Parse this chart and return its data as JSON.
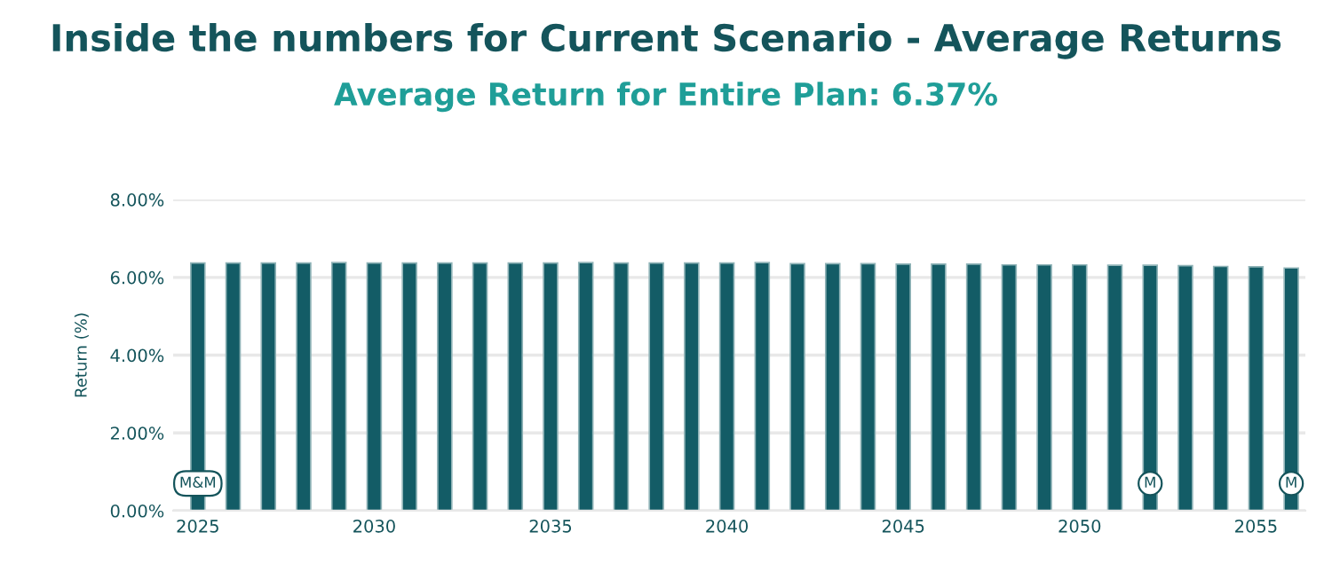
{
  "chart_data": {
    "type": "bar",
    "title": "Inside the numbers for Current Scenario - Average Returns",
    "subtitle": "Average Return for Entire Plan: 6.37%",
    "ylabel": "Return (%)",
    "x": [
      2025,
      2026,
      2027,
      2028,
      2029,
      2030,
      2031,
      2032,
      2033,
      2034,
      2035,
      2036,
      2037,
      2038,
      2039,
      2040,
      2041,
      2042,
      2043,
      2044,
      2045,
      2046,
      2047,
      2048,
      2049,
      2050,
      2051,
      2052,
      2053,
      2054,
      2055,
      2056
    ],
    "series": [
      {
        "color": "#135c66",
        "values": [
          6.37,
          6.37,
          6.37,
          6.37,
          6.38,
          6.37,
          6.37,
          6.37,
          6.37,
          6.37,
          6.37,
          6.38,
          6.37,
          6.37,
          6.37,
          6.37,
          6.38,
          6.35,
          6.35,
          6.35,
          6.34,
          6.34,
          6.34,
          6.32,
          6.32,
          6.32,
          6.31,
          6.31,
          6.3,
          6.28,
          6.27,
          6.24
        ]
      }
    ],
    "xlim": [
      2024.3,
      2056.4
    ],
    "xticks": [
      2025,
      2030,
      2035,
      2040,
      2045,
      2050,
      2055
    ],
    "ylim": [
      0,
      8
    ],
    "yticks": [
      {
        "value": 0,
        "label": "0.00%"
      },
      {
        "value": 2,
        "label": "2.00%"
      },
      {
        "value": 4,
        "label": "4.00%"
      },
      {
        "value": 6,
        "label": "6.00%"
      },
      {
        "value": 8,
        "label": "8.00%"
      }
    ],
    "grid": "y",
    "annotations": [
      {
        "text": "M&M",
        "x": 2025,
        "y": 0.7
      },
      {
        "text": "M",
        "x": 2052,
        "y": 0.7
      },
      {
        "text": "M",
        "x": 2056,
        "y": 0.7
      }
    ]
  }
}
